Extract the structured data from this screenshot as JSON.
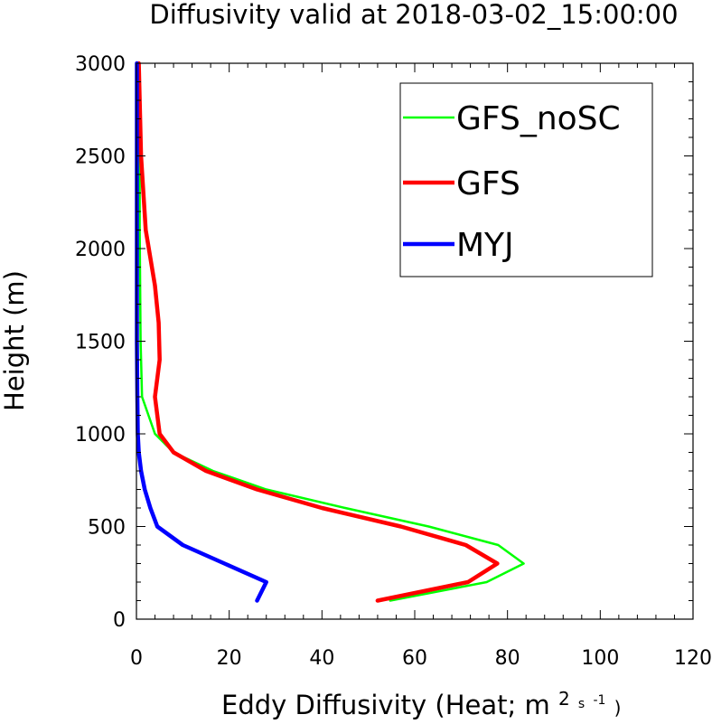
{
  "chart_data": {
    "type": "line",
    "title": "Diffusivity valid at 2018-03-02_15:00:00",
    "xlabel_main": "Eddy Diffusivity (Heat; m",
    "xlabel_sup": "2",
    "xlabel_unit_s": "s",
    "xlabel_sup2": "-1",
    "xlabel_close": ")",
    "ylabel": "Height (m)",
    "xlim": [
      0,
      120
    ],
    "ylim": [
      0,
      3000
    ],
    "xticks": [
      0,
      20,
      40,
      60,
      80,
      100,
      120
    ],
    "xtick_labels": [
      "0",
      "20",
      "40",
      "60",
      "80",
      "100",
      "120"
    ],
    "yticks": [
      0,
      500,
      1000,
      1500,
      2000,
      2500,
      3000
    ],
    "ytick_labels": [
      "0",
      "500",
      "1000",
      "1500",
      "2000",
      "2500",
      "3000"
    ],
    "grid": false,
    "legend_position": "top-right",
    "series": [
      {
        "name": "GFS_noSC",
        "color": "#00ff00",
        "x": [
          54.7,
          75.5,
          83.5,
          78.0,
          63.0,
          45.0,
          28.0,
          16.5,
          8.0,
          4.0,
          1.2,
          0.9,
          0.8,
          0.7,
          0.7,
          0.6,
          0.5
        ],
        "y": [
          100,
          200,
          300,
          400,
          500,
          600,
          700,
          800,
          900,
          1000,
          1200,
          1500,
          1800,
          2100,
          2400,
          2700,
          3000
        ]
      },
      {
        "name": "GFS",
        "color": "#ff0000",
        "x": [
          52.0,
          71.5,
          77.8,
          71.0,
          57.0,
          40.0,
          26.0,
          15.0,
          8.0,
          5.0,
          4.0,
          5.0,
          4.8,
          4.0,
          2.0,
          1.0,
          0.5
        ],
        "y": [
          100,
          200,
          300,
          400,
          500,
          600,
          700,
          800,
          900,
          1000,
          1200,
          1400,
          1600,
          1800,
          2100,
          2500,
          3000
        ]
      },
      {
        "name": "MYJ",
        "color": "#0000ff",
        "x": [
          26.0,
          28.0,
          19.0,
          10.0,
          4.5,
          3.0,
          1.8,
          1.0,
          0.5,
          0.3,
          0.2,
          0.1,
          0.1,
          0.1,
          0.1
        ],
        "y": [
          100,
          200,
          300,
          400,
          500,
          600,
          700,
          800,
          900,
          1000,
          1200,
          1500,
          2000,
          2500,
          3000
        ]
      }
    ]
  }
}
